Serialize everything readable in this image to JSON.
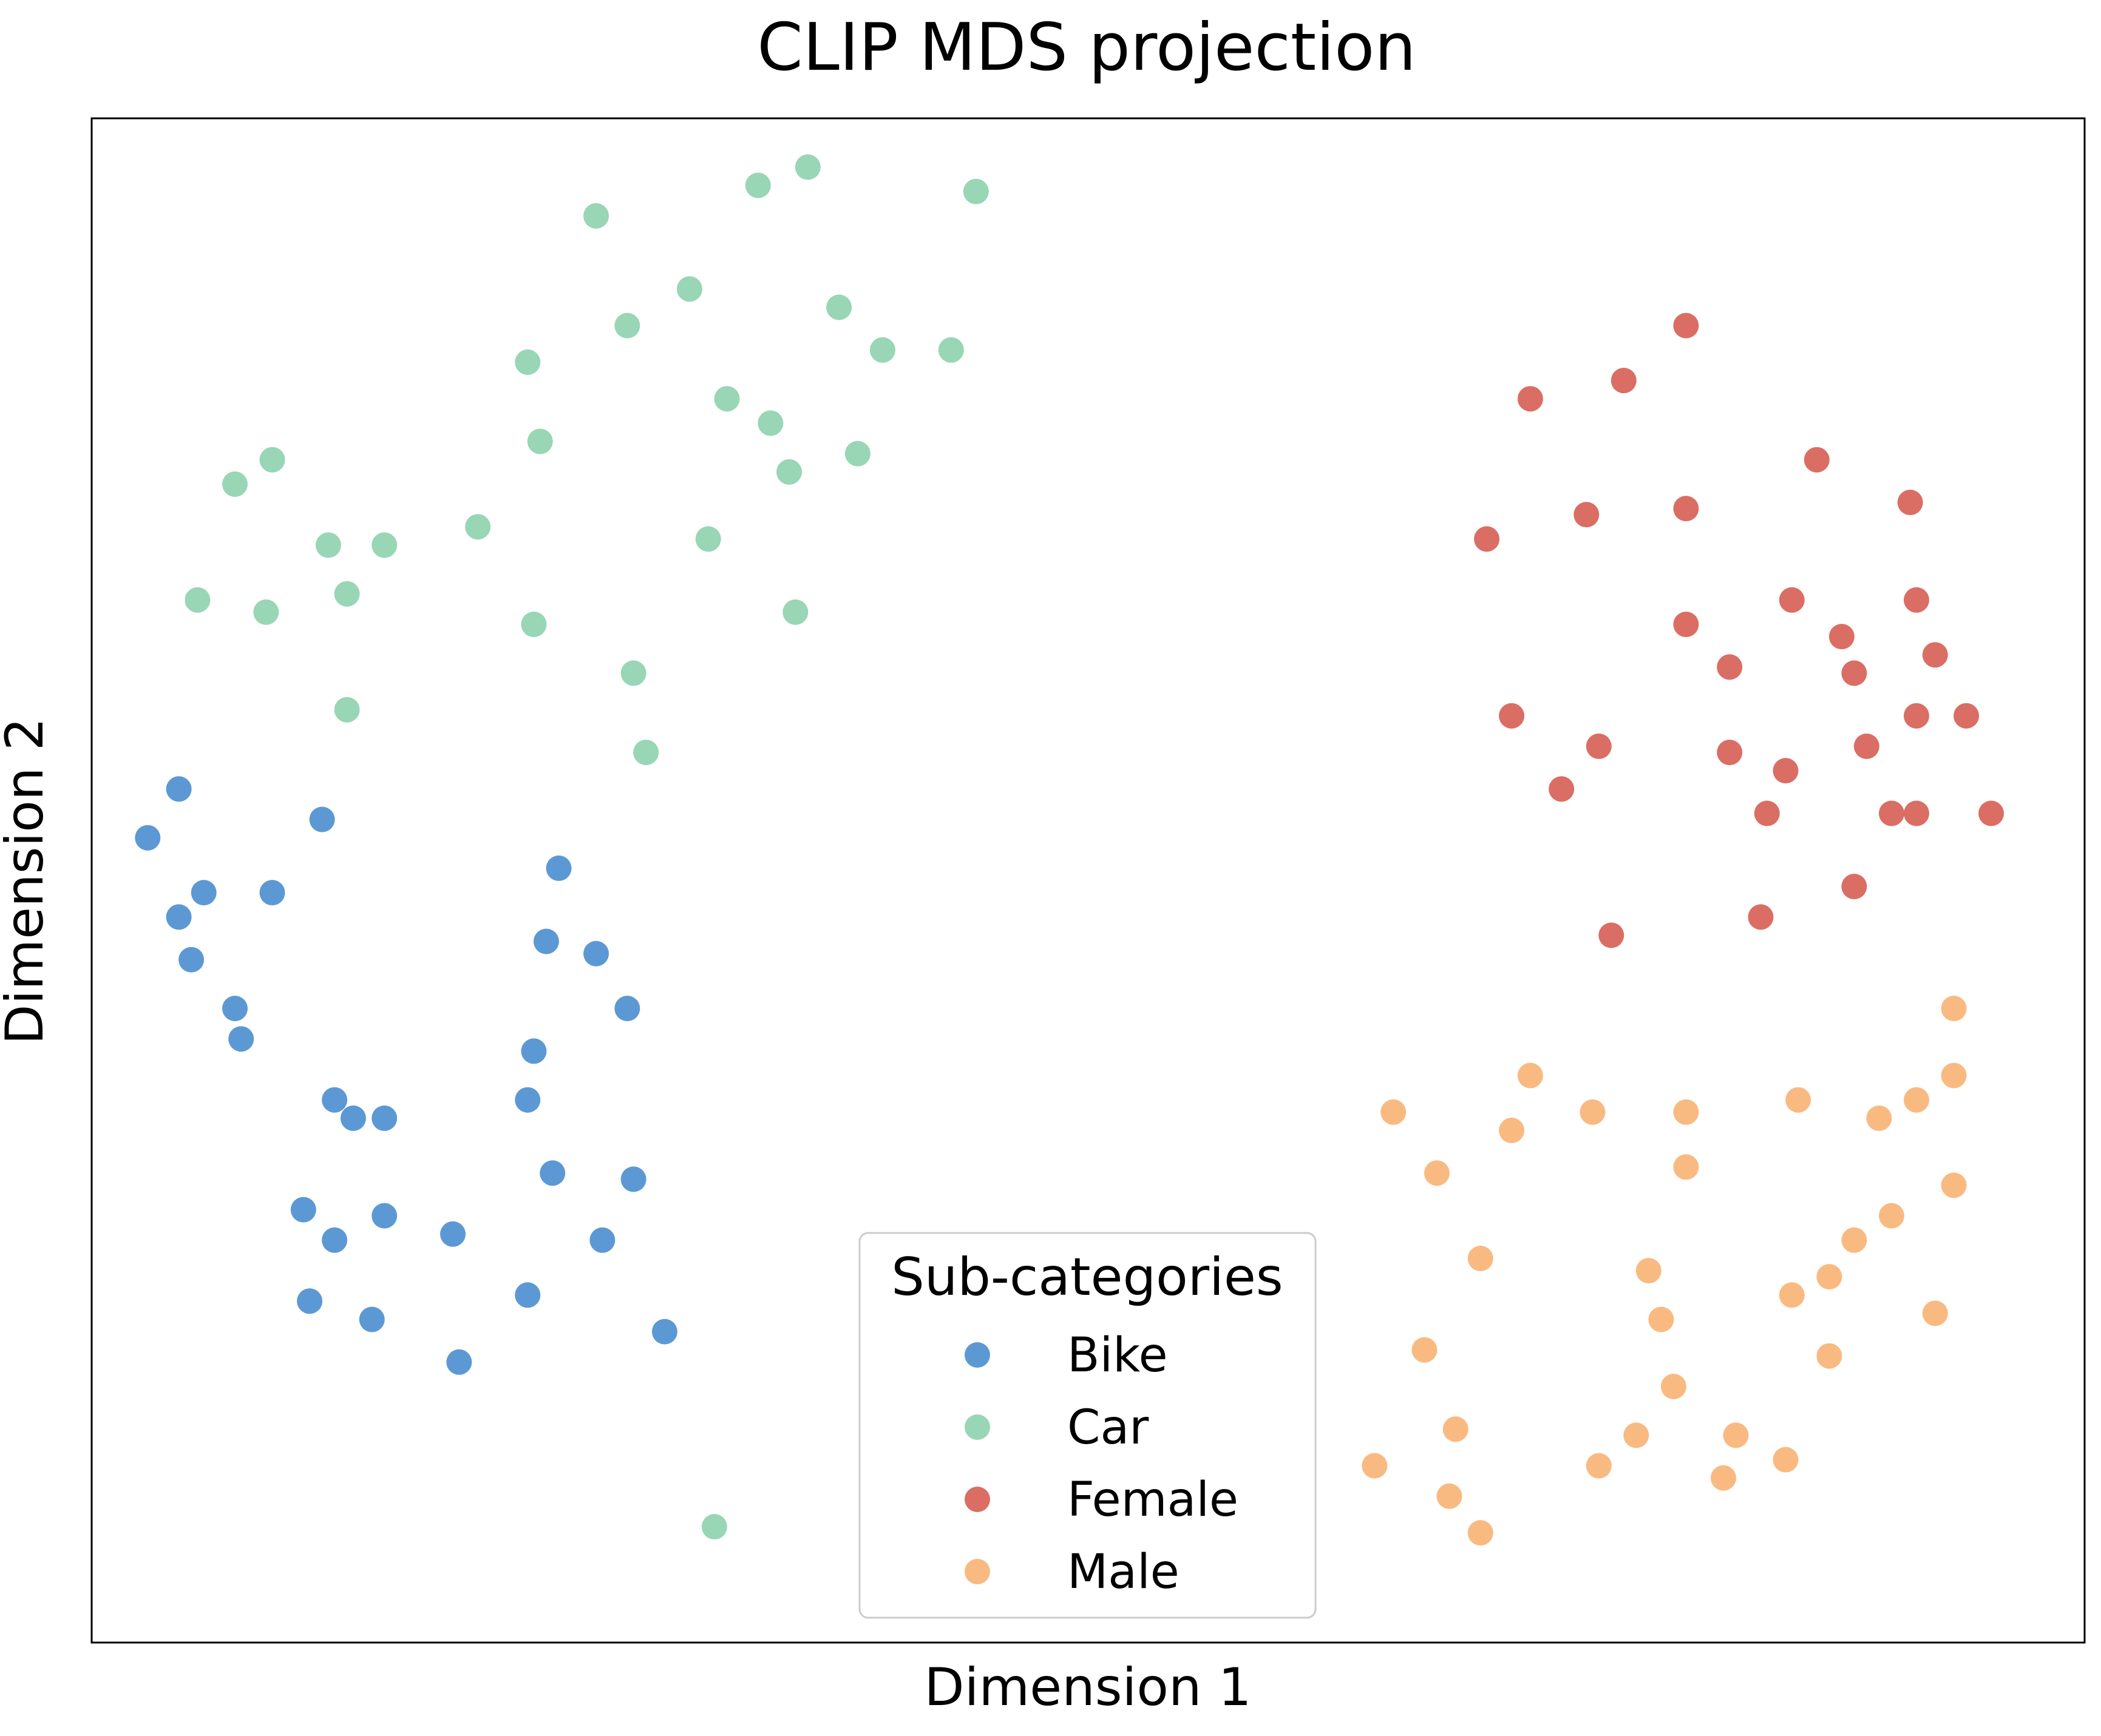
{
  "chart_data": {
    "type": "scatter",
    "title": "CLIP MDS projection",
    "xlabel": "Dimension 1",
    "ylabel": "Dimension 2",
    "xticks": [],
    "yticks": [],
    "xlim": [
      -14,
      18
    ],
    "ylim": [
      -13,
      12
    ],
    "grid": false,
    "legend": {
      "title": "Sub-categories",
      "placement": "lower-center"
    },
    "series": [
      {
        "name": "Bike",
        "color": "#3f87cc",
        "points": [
          [
            -12.6,
            1.0
          ],
          [
            -13.1,
            0.2
          ],
          [
            -10.3,
            0.5
          ],
          [
            -12.2,
            -0.7
          ],
          [
            -11.1,
            -0.7
          ],
          [
            -12.6,
            -1.1
          ],
          [
            -12.4,
            -1.8
          ],
          [
            -11.7,
            -2.6
          ],
          [
            -11.6,
            -3.1
          ],
          [
            -6.5,
            -0.3
          ],
          [
            -6.7,
            -1.5
          ],
          [
            -5.9,
            -1.7
          ],
          [
            -5.4,
            -2.6
          ],
          [
            -6.9,
            -3.3
          ],
          [
            -10.1,
            -4.1
          ],
          [
            -9.8,
            -4.4
          ],
          [
            -9.3,
            -4.4
          ],
          [
            -7.0,
            -4.1
          ],
          [
            -10.6,
            -5.9
          ],
          [
            -10.1,
            -6.4
          ],
          [
            -9.3,
            -6.0
          ],
          [
            -8.2,
            -6.3
          ],
          [
            -6.6,
            -5.3
          ],
          [
            -5.3,
            -5.4
          ],
          [
            -5.8,
            -6.4
          ],
          [
            -10.5,
            -7.4
          ],
          [
            -9.5,
            -7.7
          ],
          [
            -7.0,
            -7.3
          ],
          [
            -8.1,
            -8.4
          ],
          [
            -4.8,
            -7.9
          ]
        ]
      },
      {
        "name": "Car",
        "color": "#86cfa8",
        "points": [
          [
            -5.9,
            10.4
          ],
          [
            -3.3,
            10.9
          ],
          [
            -2.5,
            11.2
          ],
          [
            0.2,
            10.8
          ],
          [
            -4.4,
            9.2
          ],
          [
            -5.4,
            8.6
          ],
          [
            -7.0,
            8.0
          ],
          [
            -2.0,
            8.9
          ],
          [
            -1.3,
            8.2
          ],
          [
            -0.2,
            8.2
          ],
          [
            -3.8,
            7.4
          ],
          [
            -3.1,
            7.0
          ],
          [
            -6.8,
            6.7
          ],
          [
            -1.7,
            6.5
          ],
          [
            -2.8,
            6.2
          ],
          [
            -11.1,
            6.4
          ],
          [
            -11.7,
            6.0
          ],
          [
            -10.2,
            5.0
          ],
          [
            -9.3,
            5.0
          ],
          [
            -7.8,
            5.3
          ],
          [
            -4.1,
            5.1
          ],
          [
            -12.3,
            4.1
          ],
          [
            -11.2,
            3.9
          ],
          [
            -9.9,
            4.2
          ],
          [
            -6.9,
            3.7
          ],
          [
            -2.7,
            3.9
          ],
          [
            -5.3,
            2.9
          ],
          [
            -9.9,
            2.3
          ],
          [
            -5.1,
            1.6
          ],
          [
            -4.0,
            -11.1
          ]
        ]
      },
      {
        "name": "Female",
        "color": "#d35549",
        "points": [
          [
            11.6,
            8.6
          ],
          [
            10.6,
            7.7
          ],
          [
            9.1,
            7.4
          ],
          [
            13.7,
            6.4
          ],
          [
            15.2,
            5.7
          ],
          [
            8.4,
            5.1
          ],
          [
            10.0,
            5.5
          ],
          [
            11.6,
            5.6
          ],
          [
            13.3,
            4.1
          ],
          [
            15.3,
            4.1
          ],
          [
            11.6,
            3.7
          ],
          [
            14.1,
            3.5
          ],
          [
            15.6,
            3.2
          ],
          [
            12.3,
            3.0
          ],
          [
            14.3,
            2.9
          ],
          [
            8.8,
            2.2
          ],
          [
            10.2,
            1.7
          ],
          [
            12.3,
            1.6
          ],
          [
            14.5,
            1.7
          ],
          [
            15.3,
            2.2
          ],
          [
            16.1,
            2.2
          ],
          [
            9.6,
            1.0
          ],
          [
            13.2,
            1.3
          ],
          [
            12.9,
            0.6
          ],
          [
            14.9,
            0.6
          ],
          [
            15.3,
            0.6
          ],
          [
            16.5,
            0.6
          ],
          [
            14.3,
            -0.6
          ],
          [
            12.8,
            -1.1
          ],
          [
            10.4,
            -1.4
          ]
        ]
      },
      {
        "name": "Male",
        "color": "#f8ae6c",
        "points": [
          [
            15.9,
            -2.6
          ],
          [
            9.1,
            -3.7
          ],
          [
            6.9,
            -4.3
          ],
          [
            8.8,
            -4.6
          ],
          [
            10.1,
            -4.3
          ],
          [
            11.6,
            -4.3
          ],
          [
            13.4,
            -4.1
          ],
          [
            14.7,
            -4.4
          ],
          [
            15.3,
            -4.1
          ],
          [
            15.9,
            -3.7
          ],
          [
            7.6,
            -5.3
          ],
          [
            11.6,
            -5.2
          ],
          [
            15.9,
            -5.5
          ],
          [
            14.3,
            -6.4
          ],
          [
            14.9,
            -6.0
          ],
          [
            8.3,
            -6.7
          ],
          [
            11.0,
            -6.9
          ],
          [
            13.9,
            -7.0
          ],
          [
            11.2,
            -7.7
          ],
          [
            13.3,
            -7.3
          ],
          [
            7.4,
            -8.2
          ],
          [
            15.6,
            -7.6
          ],
          [
            11.4,
            -8.8
          ],
          [
            13.9,
            -8.3
          ],
          [
            7.9,
            -9.5
          ],
          [
            10.8,
            -9.6
          ],
          [
            12.4,
            -9.6
          ],
          [
            13.2,
            -10.0
          ],
          [
            6.6,
            -10.1
          ],
          [
            7.8,
            -10.6
          ],
          [
            10.2,
            -10.1
          ],
          [
            12.2,
            -10.3
          ],
          [
            8.3,
            -11.2
          ]
        ]
      }
    ]
  }
}
